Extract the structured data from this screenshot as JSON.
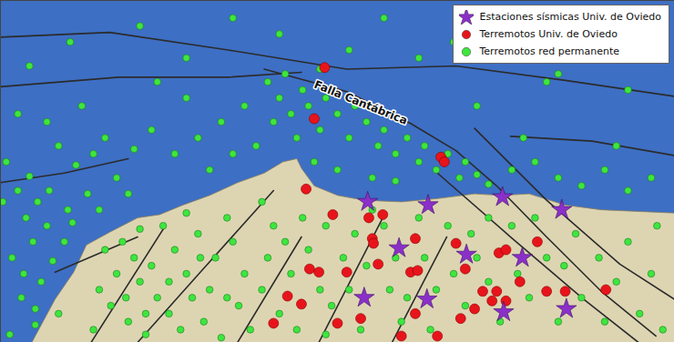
{
  "chart_data": {
    "type": "map",
    "xlim": [
      -10.2,
      -4.4
    ],
    "ylim": [
      42.67,
      44.81
    ],
    "tick_labels": false,
    "legend": "top-right",
    "annotations": [
      {
        "text": "Falla Cantábrica",
        "x": -7.1,
        "y": 44.17
      }
    ],
    "coastline": [
      [
        -9.93,
        42.67
      ],
      [
        -9.73,
        42.94
      ],
      [
        -9.57,
        43.11
      ],
      [
        -9.46,
        43.28
      ],
      [
        -9.26,
        43.36
      ],
      [
        -9.02,
        43.45
      ],
      [
        -8.83,
        43.47
      ],
      [
        -8.63,
        43.53
      ],
      [
        -8.4,
        43.59
      ],
      [
        -8.16,
        43.67
      ],
      [
        -7.93,
        43.73
      ],
      [
        -7.77,
        43.8
      ],
      [
        -7.65,
        43.82
      ],
      [
        -7.61,
        43.76
      ],
      [
        -7.5,
        43.65
      ],
      [
        -7.3,
        43.59
      ],
      [
        -7.07,
        43.56
      ],
      [
        -6.75,
        43.55
      ],
      [
        -6.44,
        43.57
      ],
      [
        -6.12,
        43.6
      ],
      [
        -5.89,
        43.59
      ],
      [
        -5.65,
        43.6
      ],
      [
        -5.34,
        43.53
      ],
      [
        -5.03,
        43.5
      ],
      [
        -4.71,
        43.49
      ],
      [
        -4.4,
        43.48
      ],
      [
        -4.4,
        42.67
      ],
      [
        -9.93,
        42.67
      ]
    ],
    "faults": [
      [
        [
          -10.2,
          44.58
        ],
        [
          -9.26,
          44.61
        ],
        [
          -8.24,
          44.5
        ],
        [
          -7.22,
          44.38
        ],
        [
          -6.28,
          44.4
        ],
        [
          -5.34,
          44.31
        ],
        [
          -4.4,
          44.21
        ]
      ],
      [
        [
          -10.2,
          44.27
        ],
        [
          -9.18,
          44.33
        ],
        [
          -8.24,
          44.33
        ],
        [
          -7.61,
          44.36
        ]
      ],
      [
        [
          -7.93,
          44.38
        ],
        [
          -7.22,
          44.24
        ],
        [
          -6.67,
          44.04
        ],
        [
          -6.28,
          43.87
        ],
        [
          -5.93,
          43.65
        ],
        [
          -5.5,
          43.33
        ],
        [
          -5.03,
          42.99
        ],
        [
          -4.56,
          42.71
        ]
      ],
      [
        [
          -10.2,
          43.67
        ],
        [
          -9.65,
          43.73
        ],
        [
          -9.1,
          43.82
        ]
      ],
      [
        [
          -5.81,
          43.96
        ],
        [
          -5.11,
          43.93
        ],
        [
          -4.4,
          43.84
        ]
      ],
      [
        [
          -9.02,
          42.67
        ],
        [
          -8.48,
          43.11
        ],
        [
          -7.85,
          43.62
        ]
      ],
      [
        [
          -8.16,
          42.67
        ],
        [
          -7.61,
          43.33
        ]
      ],
      [
        [
          -7.46,
          42.67
        ],
        [
          -6.91,
          43.45
        ]
      ],
      [
        [
          -6.83,
          42.67
        ],
        [
          -6.36,
          43.33
        ]
      ],
      [
        [
          -6.44,
          43.73
        ],
        [
          -5.81,
          43.33
        ],
        [
          -5.18,
          42.94
        ],
        [
          -4.71,
          42.67
        ]
      ],
      [
        [
          -6.12,
          44.01
        ],
        [
          -5.5,
          43.56
        ],
        [
          -4.87,
          43.16
        ],
        [
          -4.4,
          42.94
        ]
      ],
      [
        [
          -9.73,
          43.11
        ],
        [
          -9.02,
          43.33
        ]
      ],
      [
        [
          -9.42,
          42.67
        ],
        [
          -8.79,
          43.39
        ]
      ]
    ],
    "series": [
      {
        "name": "Estaciones sísmicas Univ. de Oviedo",
        "color": "#8b2fc9",
        "marker": "star",
        "values": [
          [
            -7.04,
            43.55
          ],
          [
            -6.52,
            43.53
          ],
          [
            -5.88,
            43.58
          ],
          [
            -5.37,
            43.5
          ],
          [
            -6.77,
            43.26
          ],
          [
            -6.19,
            43.22
          ],
          [
            -5.71,
            43.2
          ],
          [
            -7.07,
            42.95
          ],
          [
            -6.53,
            42.94
          ],
          [
            -5.87,
            42.86
          ],
          [
            -5.33,
            42.88
          ]
        ]
      },
      {
        "name": "Terremotos Univ. de Oviedo",
        "color": "#e8141c",
        "marker": "circle",
        "values": [
          [
            -7.41,
            44.39
          ],
          [
            -7.5,
            44.07
          ],
          [
            -6.41,
            43.83
          ],
          [
            -6.38,
            43.8
          ],
          [
            -7.57,
            43.63
          ],
          [
            -7.34,
            43.47
          ],
          [
            -7.03,
            43.45
          ],
          [
            -6.91,
            43.47
          ],
          [
            -7.0,
            43.32
          ],
          [
            -6.99,
            43.29
          ],
          [
            -6.63,
            43.32
          ],
          [
            -6.95,
            43.16
          ],
          [
            -6.67,
            43.11
          ],
          [
            -6.61,
            43.12
          ],
          [
            -6.28,
            43.29
          ],
          [
            -5.91,
            43.23
          ],
          [
            -5.85,
            43.25
          ],
          [
            -5.58,
            43.3
          ],
          [
            -6.05,
            42.99
          ],
          [
            -5.93,
            42.99
          ],
          [
            -5.97,
            42.93
          ],
          [
            -5.85,
            42.93
          ],
          [
            -6.12,
            42.88
          ],
          [
            -5.5,
            42.99
          ],
          [
            -5.34,
            42.99
          ],
          [
            -4.99,
            43.0
          ],
          [
            -7.54,
            43.13
          ],
          [
            -7.46,
            43.11
          ],
          [
            -7.22,
            43.11
          ],
          [
            -7.73,
            42.96
          ],
          [
            -7.61,
            42.91
          ],
          [
            -7.3,
            42.79
          ],
          [
            -7.1,
            42.82
          ],
          [
            -7.85,
            42.79
          ],
          [
            -6.63,
            42.85
          ],
          [
            -6.24,
            42.82
          ],
          [
            -6.44,
            42.71
          ],
          [
            -6.75,
            42.71
          ],
          [
            -5.73,
            43.05
          ],
          [
            -6.2,
            43.13
          ]
        ]
      },
      {
        "name": "Terremotos red permanente",
        "color": "#3ee63e",
        "marker": "circle",
        "values": [
          [
            -10.15,
            43.8
          ],
          [
            -10.05,
            43.62
          ],
          [
            -9.95,
            43.71
          ],
          [
            -9.88,
            43.55
          ],
          [
            -9.8,
            43.4
          ],
          [
            -9.92,
            43.3
          ],
          [
            -10.1,
            43.2
          ],
          [
            -9.75,
            43.18
          ],
          [
            -9.85,
            43.05
          ],
          [
            -10.02,
            42.95
          ],
          [
            -9.7,
            42.85
          ],
          [
            -9.9,
            42.78
          ],
          [
            -10.12,
            42.72
          ],
          [
            -9.78,
            43.62
          ],
          [
            -9.62,
            43.5
          ],
          [
            -9.55,
            43.78
          ],
          [
            -9.7,
            43.9
          ],
          [
            -9.4,
            43.85
          ],
          [
            -9.3,
            43.95
          ],
          [
            -9.2,
            43.7
          ],
          [
            -9.45,
            43.6
          ],
          [
            -9.98,
            43.45
          ],
          [
            -10.18,
            43.55
          ],
          [
            -9.65,
            43.3
          ],
          [
            -9.58,
            43.42
          ],
          [
            -9.35,
            43.5
          ],
          [
            -9.1,
            43.6
          ],
          [
            -9.05,
            43.88
          ],
          [
            -8.9,
            44.0
          ],
          [
            -9.8,
            44.05
          ],
          [
            -10.05,
            44.1
          ],
          [
            -9.5,
            44.15
          ],
          [
            -9.9,
            42.88
          ],
          [
            -10.0,
            43.1
          ],
          [
            -9.3,
            43.25
          ],
          [
            -9.15,
            43.3
          ],
          [
            -9.05,
            43.2
          ],
          [
            -9.2,
            43.1
          ],
          [
            -9.35,
            43.0
          ],
          [
            -9.25,
            42.9
          ],
          [
            -9.1,
            42.8
          ],
          [
            -9.4,
            42.75
          ],
          [
            -9.0,
            43.05
          ],
          [
            -8.9,
            43.15
          ],
          [
            -8.85,
            42.95
          ],
          [
            -8.75,
            42.85
          ],
          [
            -8.95,
            42.72
          ],
          [
            -8.7,
            43.25
          ],
          [
            -8.6,
            43.1
          ],
          [
            -8.55,
            42.95
          ],
          [
            -8.45,
            42.8
          ],
          [
            -8.65,
            42.75
          ],
          [
            -8.4,
            43.0
          ],
          [
            -8.35,
            43.2
          ],
          [
            -8.5,
            43.35
          ],
          [
            -8.25,
            43.45
          ],
          [
            -8.2,
            43.3
          ],
          [
            -8.1,
            43.1
          ],
          [
            -8.15,
            42.9
          ],
          [
            -8.05,
            42.75
          ],
          [
            -8.3,
            42.7
          ],
          [
            -7.95,
            43.0
          ],
          [
            -7.9,
            43.2
          ],
          [
            -7.85,
            43.4
          ],
          [
            -7.95,
            43.55
          ],
          [
            -7.75,
            43.3
          ],
          [
            -7.7,
            43.1
          ],
          [
            -7.8,
            42.85
          ],
          [
            -7.65,
            42.75
          ],
          [
            -8.8,
            43.4
          ],
          [
            -9.0,
            43.38
          ],
          [
            -8.6,
            43.48
          ],
          [
            -8.75,
            43.05
          ],
          [
            -9.12,
            42.95
          ],
          [
            -8.95,
            42.85
          ],
          [
            -8.25,
            42.95
          ],
          [
            -8.48,
            43.2
          ],
          [
            -7.6,
            43.45
          ],
          [
            -7.55,
            43.25
          ],
          [
            -7.4,
            43.4
          ],
          [
            -7.45,
            43.0
          ],
          [
            -7.35,
            42.9
          ],
          [
            -7.4,
            42.72
          ],
          [
            -7.25,
            43.2
          ],
          [
            -7.15,
            43.35
          ],
          [
            -7.2,
            43.0
          ],
          [
            -7.1,
            42.75
          ],
          [
            -7.05,
            43.15
          ],
          [
            -6.9,
            43.4
          ],
          [
            -6.8,
            43.2
          ],
          [
            -6.85,
            43.0
          ],
          [
            -6.75,
            42.8
          ],
          [
            -6.6,
            43.45
          ],
          [
            -6.55,
            43.2
          ],
          [
            -6.45,
            43.0
          ],
          [
            -6.5,
            42.75
          ],
          [
            -6.35,
            43.4
          ],
          [
            -6.3,
            43.1
          ],
          [
            -6.15,
            43.35
          ],
          [
            -6.1,
            43.2
          ],
          [
            -6.0,
            43.45
          ],
          [
            -6.0,
            43.05
          ],
          [
            -5.9,
            42.8
          ],
          [
            -5.8,
            43.4
          ],
          [
            -5.75,
            43.1
          ],
          [
            -5.65,
            42.95
          ],
          [
            -5.6,
            43.45
          ],
          [
            -5.5,
            43.2
          ],
          [
            -5.4,
            42.8
          ],
          [
            -5.35,
            43.15
          ],
          [
            -5.25,
            43.35
          ],
          [
            -5.2,
            42.95
          ],
          [
            -5.05,
            43.2
          ],
          [
            -5.0,
            42.8
          ],
          [
            -4.9,
            43.05
          ],
          [
            -4.8,
            43.3
          ],
          [
            -4.7,
            42.85
          ],
          [
            -4.6,
            43.1
          ],
          [
            -4.5,
            42.75
          ],
          [
            -4.55,
            43.4
          ],
          [
            -7.0,
            43.5
          ],
          [
            -6.7,
            42.95
          ],
          [
            -6.2,
            42.9
          ],
          [
            -7.9,
            44.3
          ],
          [
            -7.8,
            44.2
          ],
          [
            -7.7,
            44.1
          ],
          [
            -7.6,
            44.25
          ],
          [
            -7.55,
            44.15
          ],
          [
            -7.45,
            44.0
          ],
          [
            -7.4,
            44.2
          ],
          [
            -7.3,
            44.1
          ],
          [
            -7.2,
            43.95
          ],
          [
            -7.15,
            44.15
          ],
          [
            -7.05,
            44.05
          ],
          [
            -6.95,
            43.9
          ],
          [
            -6.9,
            44.0
          ],
          [
            -6.8,
            43.85
          ],
          [
            -6.7,
            43.95
          ],
          [
            -6.6,
            43.8
          ],
          [
            -6.55,
            43.9
          ],
          [
            -6.45,
            43.75
          ],
          [
            -6.35,
            43.85
          ],
          [
            -6.25,
            43.7
          ],
          [
            -6.2,
            43.8
          ],
          [
            -6.1,
            43.72
          ],
          [
            -6.0,
            43.66
          ],
          [
            -7.65,
            43.95
          ],
          [
            -7.85,
            44.05
          ],
          [
            -8.1,
            44.15
          ],
          [
            -8.3,
            44.05
          ],
          [
            -8.5,
            43.95
          ],
          [
            -8.7,
            43.85
          ],
          [
            -8.2,
            43.85
          ],
          [
            -8.4,
            43.75
          ],
          [
            -7.5,
            43.8
          ],
          [
            -7.3,
            43.75
          ],
          [
            -7.0,
            43.7
          ],
          [
            -6.8,
            43.68
          ],
          [
            -8.0,
            43.9
          ],
          [
            -7.75,
            44.35
          ],
          [
            -7.45,
            44.38
          ],
          [
            -8.6,
            44.2
          ],
          [
            -8.85,
            44.3
          ],
          [
            -5.8,
            43.75
          ],
          [
            -5.6,
            43.8
          ],
          [
            -5.4,
            43.7
          ],
          [
            -5.2,
            43.65
          ],
          [
            -5.0,
            43.75
          ],
          [
            -4.8,
            43.62
          ],
          [
            -4.6,
            43.7
          ],
          [
            -5.7,
            43.95
          ],
          [
            -4.9,
            43.9
          ],
          [
            -6.1,
            44.15
          ],
          [
            -5.5,
            44.3
          ],
          [
            -9.6,
            44.55
          ],
          [
            -9.0,
            44.65
          ],
          [
            -8.6,
            44.45
          ],
          [
            -7.8,
            44.6
          ],
          [
            -7.2,
            44.5
          ],
          [
            -6.6,
            44.45
          ],
          [
            -6.3,
            44.55
          ],
          [
            -5.4,
            44.35
          ],
          [
            -4.8,
            44.25
          ],
          [
            -8.2,
            44.7
          ],
          [
            -9.95,
            44.4
          ],
          [
            -6.9,
            44.7
          ]
        ]
      }
    ]
  }
}
